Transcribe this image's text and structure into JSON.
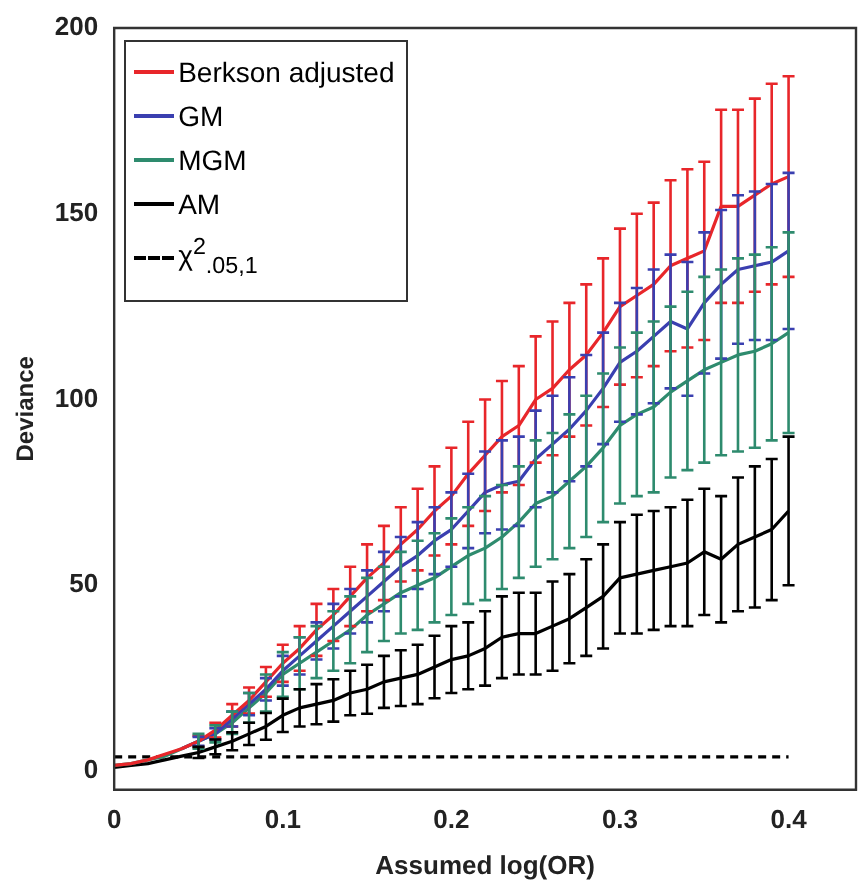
{
  "chart_data": {
    "type": "line",
    "xlabel": "Assumed log(OR)",
    "ylabel": "Deviance",
    "x": [
      0,
      0.01,
      0.02,
      0.03,
      0.04,
      0.05,
      0.06,
      0.07,
      0.08,
      0.09,
      0.1,
      0.11,
      0.12,
      0.13,
      0.14,
      0.15,
      0.16,
      0.17,
      0.18,
      0.19,
      0.2,
      0.21,
      0.22,
      0.23,
      0.24,
      0.25,
      0.26,
      0.27,
      0.28,
      0.29,
      0.3,
      0.31,
      0.32,
      0.33,
      0.34,
      0.35,
      0.36,
      0.37,
      0.38,
      0.39,
      0.4
    ],
    "xlim": [
      0,
      0.44
    ],
    "xticks": [
      0,
      0.1,
      0.2,
      0.3,
      0.4
    ],
    "ylim": [
      -5,
      200
    ],
    "yticks": [
      0,
      50,
      100,
      150,
      200
    ],
    "grid": false,
    "legend": "top left",
    "marker": "none",
    "line_style": "solid",
    "series": [
      {
        "name": "Berkson adjusted",
        "color": "#e8262a",
        "values": [
          1.5,
          2,
          3,
          4.5,
          6,
          8,
          11,
          15,
          19,
          24,
          29,
          33,
          38,
          42,
          47,
          52,
          56,
          61,
          65,
          70,
          74,
          80,
          85,
          90,
          93,
          100,
          103,
          108,
          112,
          118,
          125,
          128,
          131,
          136,
          138,
          140,
          152,
          152,
          155,
          158,
          160
        ],
        "errors": [
          null,
          null,
          null,
          null,
          null,
          1.5,
          2,
          3,
          3.5,
          4,
          5,
          6,
          7,
          7,
          8,
          9,
          10,
          10,
          11,
          12,
          13,
          14,
          15,
          15,
          16,
          17,
          18,
          18,
          19,
          20,
          21,
          22,
          22,
          23,
          24,
          24,
          26,
          26,
          26,
          27,
          27
        ]
      },
      {
        "name": "GM",
        "color": "#3a3fb0",
        "values": [
          null,
          null,
          null,
          null,
          6,
          8,
          10,
          14,
          18,
          22,
          27,
          31,
          35,
          39,
          43,
          47,
          51,
          55,
          58,
          62,
          65,
          70,
          75,
          77,
          78,
          84,
          88,
          92,
          97,
          103,
          110,
          113,
          117,
          121,
          119,
          126,
          131,
          135,
          136,
          137,
          140
        ],
        "errors": [
          null,
          null,
          null,
          null,
          null,
          1.2,
          1.5,
          2,
          3,
          3,
          4,
          5,
          5,
          6,
          6,
          7,
          8,
          8,
          9,
          9,
          10,
          10,
          11,
          12,
          12,
          13,
          13,
          14,
          15,
          15,
          16,
          17,
          18,
          18,
          18,
          19,
          20,
          20,
          20,
          21,
          21
        ]
      },
      {
        "name": "MGM",
        "color": "#2e8b6e",
        "values": [
          1.5,
          2,
          3,
          4,
          6,
          8,
          10,
          13,
          17,
          21,
          26,
          29,
          32,
          35,
          38,
          42,
          45,
          48,
          50,
          52,
          55,
          58,
          60,
          63,
          67,
          72,
          74,
          78,
          82,
          87,
          93,
          96,
          98,
          102,
          105,
          108,
          110,
          112,
          113,
          115,
          118
        ],
        "errors": [
          null,
          null,
          null,
          null,
          null,
          2,
          2.3,
          3,
          4,
          5,
          6,
          7,
          7,
          8,
          9,
          10,
          10,
          11,
          12,
          12,
          13,
          13,
          14,
          14,
          15,
          17,
          17,
          18,
          19,
          20,
          21,
          22,
          23,
          23,
          24,
          25,
          25,
          26,
          26,
          26,
          27
        ]
      },
      {
        "name": "AM",
        "color": "#000000",
        "values": [
          1,
          1.5,
          2,
          3,
          4,
          5,
          6.5,
          8,
          10,
          12,
          15,
          17,
          18,
          19,
          21,
          22,
          24,
          25,
          26,
          28,
          30,
          31,
          33,
          36,
          37,
          37,
          39,
          41,
          44,
          47,
          52,
          53,
          54,
          55,
          56,
          59,
          57,
          61,
          63,
          65,
          70
        ],
        "errors": [
          null,
          null,
          null,
          null,
          null,
          1.5,
          2,
          2.4,
          3,
          3.6,
          4.5,
          5,
          5.4,
          5.7,
          6,
          6.6,
          7,
          7.5,
          8,
          8.4,
          9,
          9,
          10,
          11,
          11,
          11,
          12,
          12,
          13,
          14,
          15,
          16,
          16,
          16,
          17,
          17,
          17,
          18,
          19,
          19,
          20
        ]
      },
      {
        "name": "χ$^{2}$$_{.05,1}$",
        "line_style": "dashed",
        "color": "#000000",
        "x": [
          0,
          0.4
        ],
        "values": [
          3.8,
          3.8
        ]
      }
    ]
  }
}
